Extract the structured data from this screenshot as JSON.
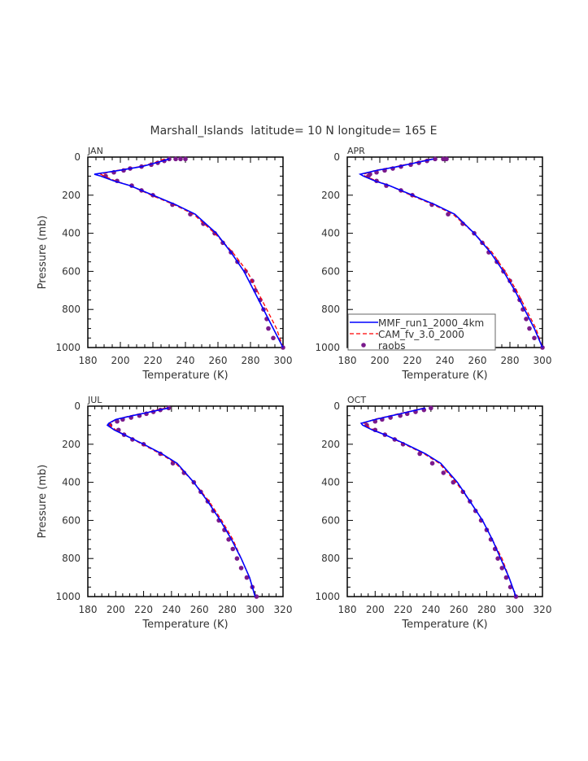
{
  "chart_data": {
    "type": "line",
    "title": "Marshall_Islands  latitude= 10 N longitude= 165 E",
    "xlabel": "Temperature (K)",
    "ylabel": "Pressure (mb)",
    "legend": {
      "placement": "bottom-left of APR panel",
      "entries": [
        {
          "name": "MMF_run1_2000_4km",
          "color": "#0000ff",
          "style": "solid"
        },
        {
          "name": "CAM_fv_3.0_2000",
          "color": "#ff0000",
          "style": "dashed"
        },
        {
          "name": "raobs",
          "color": "#7a1a8c",
          "style": "dots"
        }
      ]
    },
    "panels": [
      {
        "label": "JAN",
        "xlim": [
          180,
          300
        ],
        "ylim": [
          1000,
          0
        ],
        "xticks": [
          180,
          200,
          220,
          240,
          260,
          280,
          300
        ],
        "yticks": [
          0,
          200,
          400,
          600,
          800,
          1000
        ],
        "model_pressure": [
          10,
          30,
          50,
          70,
          90,
          100,
          125,
          150,
          200,
          250,
          300,
          400,
          500,
          600,
          700,
          800,
          900,
          1000
        ],
        "series": [
          {
            "name": "MMF_run1_2000_4km",
            "values": [
              230,
              222,
              213,
              199,
              184,
              188,
              196,
              206,
              220,
              234,
              246,
              259,
              268,
              276,
              282,
              288,
              294,
              300
            ]
          },
          {
            "name": "CAM_fv_3.0_2000",
            "values": [
              227,
              221,
              212,
              198,
              188,
              190,
              197,
              206,
              219,
              233,
              245,
              258,
              269,
              278,
              284,
              290,
              296,
              300
            ]
          }
        ],
        "raobs": {
          "p": [
            10,
            10,
            10,
            10,
            20,
            30,
            40,
            50,
            60,
            70,
            80,
            100,
            125,
            150,
            175,
            200,
            250,
            300,
            350,
            400,
            450,
            500,
            550,
            600,
            650,
            700,
            750,
            800,
            850,
            900,
            950,
            1000
          ],
          "t": [
            240,
            237,
            234,
            230,
            227,
            223,
            219,
            213,
            206,
            202,
            196,
            191,
            198,
            207,
            213,
            220,
            232,
            243,
            251,
            258,
            263,
            268,
            272,
            277,
            281,
            283,
            286,
            288,
            290,
            291,
            294,
            300
          ]
        }
      },
      {
        "label": "APR",
        "xlim": [
          180,
          300
        ],
        "ylim": [
          1000,
          0
        ],
        "xticks": [
          180,
          200,
          220,
          240,
          260,
          280,
          300
        ],
        "yticks": [
          0,
          200,
          400,
          600,
          800,
          1000
        ],
        "model_pressure": [
          10,
          30,
          50,
          70,
          90,
          100,
          125,
          150,
          200,
          250,
          300,
          400,
          500,
          600,
          700,
          800,
          900,
          1000
        ],
        "series": [
          {
            "name": "MMF_run1_2000_4km",
            "values": [
              233,
              222,
              211,
              198,
              188,
              190,
              197,
              206,
              220,
              234,
              246,
              258,
              268,
              276,
              283,
              289,
              295,
              300
            ]
          },
          {
            "name": "CAM_fv_3.0_2000",
            "values": [
              232,
              221,
              210,
              197,
              190,
              191,
              198,
              206,
              219,
              233,
              245,
              258,
              269,
              277,
              284,
              290,
              296,
              300
            ]
          }
        ],
        "raobs": {
          "p": [
            10,
            10,
            10,
            20,
            30,
            40,
            50,
            60,
            70,
            80,
            90,
            100,
            125,
            150,
            175,
            200,
            250,
            300,
            350,
            400,
            450,
            500,
            550,
            600,
            650,
            700,
            750,
            800,
            850,
            900,
            950,
            1000
          ],
          "t": [
            241,
            239,
            234,
            229,
            224,
            219,
            213,
            208,
            203,
            198,
            194,
            193,
            198,
            204,
            213,
            220,
            232,
            242,
            251,
            258,
            263,
            267,
            272,
            276,
            280,
            283,
            286,
            288,
            290,
            292,
            295,
            300
          ]
        }
      },
      {
        "label": "JUL",
        "xlim": [
          180,
          320
        ],
        "ylim": [
          1000,
          0
        ],
        "xticks": [
          180,
          200,
          220,
          240,
          260,
          280,
          300,
          320
        ],
        "yticks": [
          0,
          200,
          400,
          600,
          800,
          1000
        ],
        "model_pressure": [
          10,
          30,
          50,
          70,
          90,
          100,
          125,
          150,
          200,
          250,
          300,
          400,
          500,
          600,
          700,
          800,
          900,
          1000
        ],
        "series": [
          {
            "name": "MMF_run1_2000_4km",
            "values": [
              238,
              225,
              212,
              200,
              195,
              194,
              199,
              206,
              220,
              233,
              244,
              256,
              266,
              275,
              283,
              290,
              296,
              300
            ]
          },
          {
            "name": "CAM_fv_3.0_2000",
            "values": [
              236,
              224,
              211,
              200,
              196,
              196,
              200,
              206,
              219,
              232,
              243,
              256,
              267,
              276,
              284,
              290,
              296,
              300
            ]
          }
        ],
        "raobs": {
          "p": [
            10,
            20,
            30,
            40,
            50,
            60,
            70,
            80,
            100,
            125,
            150,
            175,
            200,
            250,
            300,
            350,
            400,
            450,
            500,
            550,
            600,
            650,
            700,
            750,
            800,
            850,
            900,
            950,
            1000
          ],
          "t": [
            238,
            232,
            227,
            222,
            217,
            211,
            205,
            201,
            196,
            202,
            206,
            212,
            220,
            232,
            241,
            249,
            256,
            261,
            266,
            270,
            274,
            278,
            281,
            284,
            287,
            290,
            294,
            298,
            301
          ]
        }
      },
      {
        "label": "OCT",
        "xlim": [
          180,
          320
        ],
        "ylim": [
          1000,
          0
        ],
        "xticks": [
          180,
          200,
          220,
          240,
          260,
          280,
          300,
          320
        ],
        "yticks": [
          0,
          200,
          400,
          600,
          800,
          1000
        ],
        "model_pressure": [
          10,
          30,
          50,
          70,
          90,
          100,
          125,
          150,
          200,
          250,
          300,
          400,
          500,
          600,
          700,
          800,
          900,
          1000
        ],
        "series": [
          {
            "name": "MMF_run1_2000_4km",
            "values": [
              236,
              224,
              212,
              200,
              190,
              191,
              198,
              207,
              222,
              236,
              247,
              259,
              268,
              277,
              284,
              290,
              296,
              301
            ]
          },
          {
            "name": "CAM_fv_3.0_2000",
            "values": [
              235,
              223,
              211,
              199,
              192,
              193,
              199,
              207,
              221,
              235,
              246,
              258,
              268,
              277,
              284,
              291,
              296,
              301
            ]
          }
        ],
        "raobs": {
          "p": [
            10,
            20,
            30,
            40,
            50,
            60,
            70,
            80,
            100,
            125,
            150,
            175,
            200,
            250,
            300,
            350,
            400,
            450,
            500,
            550,
            600,
            650,
            700,
            750,
            800,
            850,
            900,
            950,
            1000
          ],
          "t": [
            240,
            235,
            229,
            223,
            218,
            211,
            205,
            200,
            194,
            200,
            207,
            214,
            220,
            232,
            241,
            249,
            256,
            263,
            268,
            272,
            276,
            280,
            283,
            286,
            288,
            291,
            294,
            297,
            301
          ]
        }
      }
    ]
  }
}
